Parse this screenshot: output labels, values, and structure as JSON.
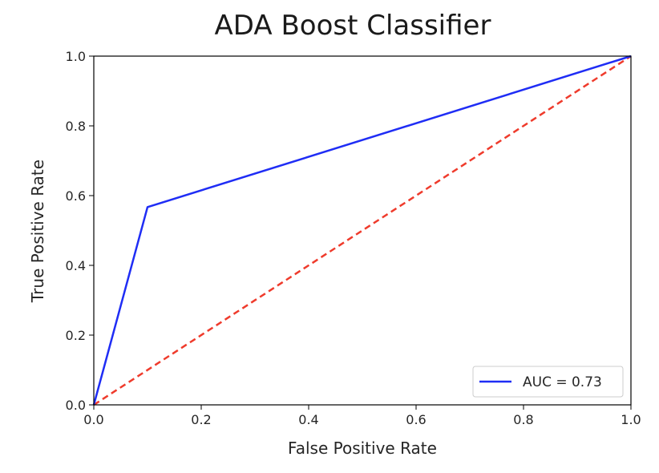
{
  "chart_data": {
    "type": "line",
    "title": "ADA Boost Classifier",
    "xlabel": "False Positive Rate",
    "ylabel": "True Positive Rate",
    "xlim": [
      0.0,
      1.0
    ],
    "ylim": [
      0.0,
      1.0
    ],
    "xticks": [
      "0.0",
      "0.2",
      "0.4",
      "0.6",
      "0.8",
      "1.0"
    ],
    "yticks": [
      "0.0",
      "0.2",
      "0.4",
      "0.6",
      "0.8",
      "1.0"
    ],
    "grid": false,
    "legend_position": "lower-right",
    "series": [
      {
        "name": "AUC = 0.73",
        "color": "#1f2df5",
        "style": "solid",
        "x": [
          0.0,
          0.1,
          1.0
        ],
        "y": [
          0.0,
          0.567,
          1.0
        ]
      },
      {
        "color": "#ef3b2c",
        "style": "dashed",
        "x": [
          0.0,
          1.0
        ],
        "y": [
          0.0,
          1.0
        ]
      }
    ]
  }
}
